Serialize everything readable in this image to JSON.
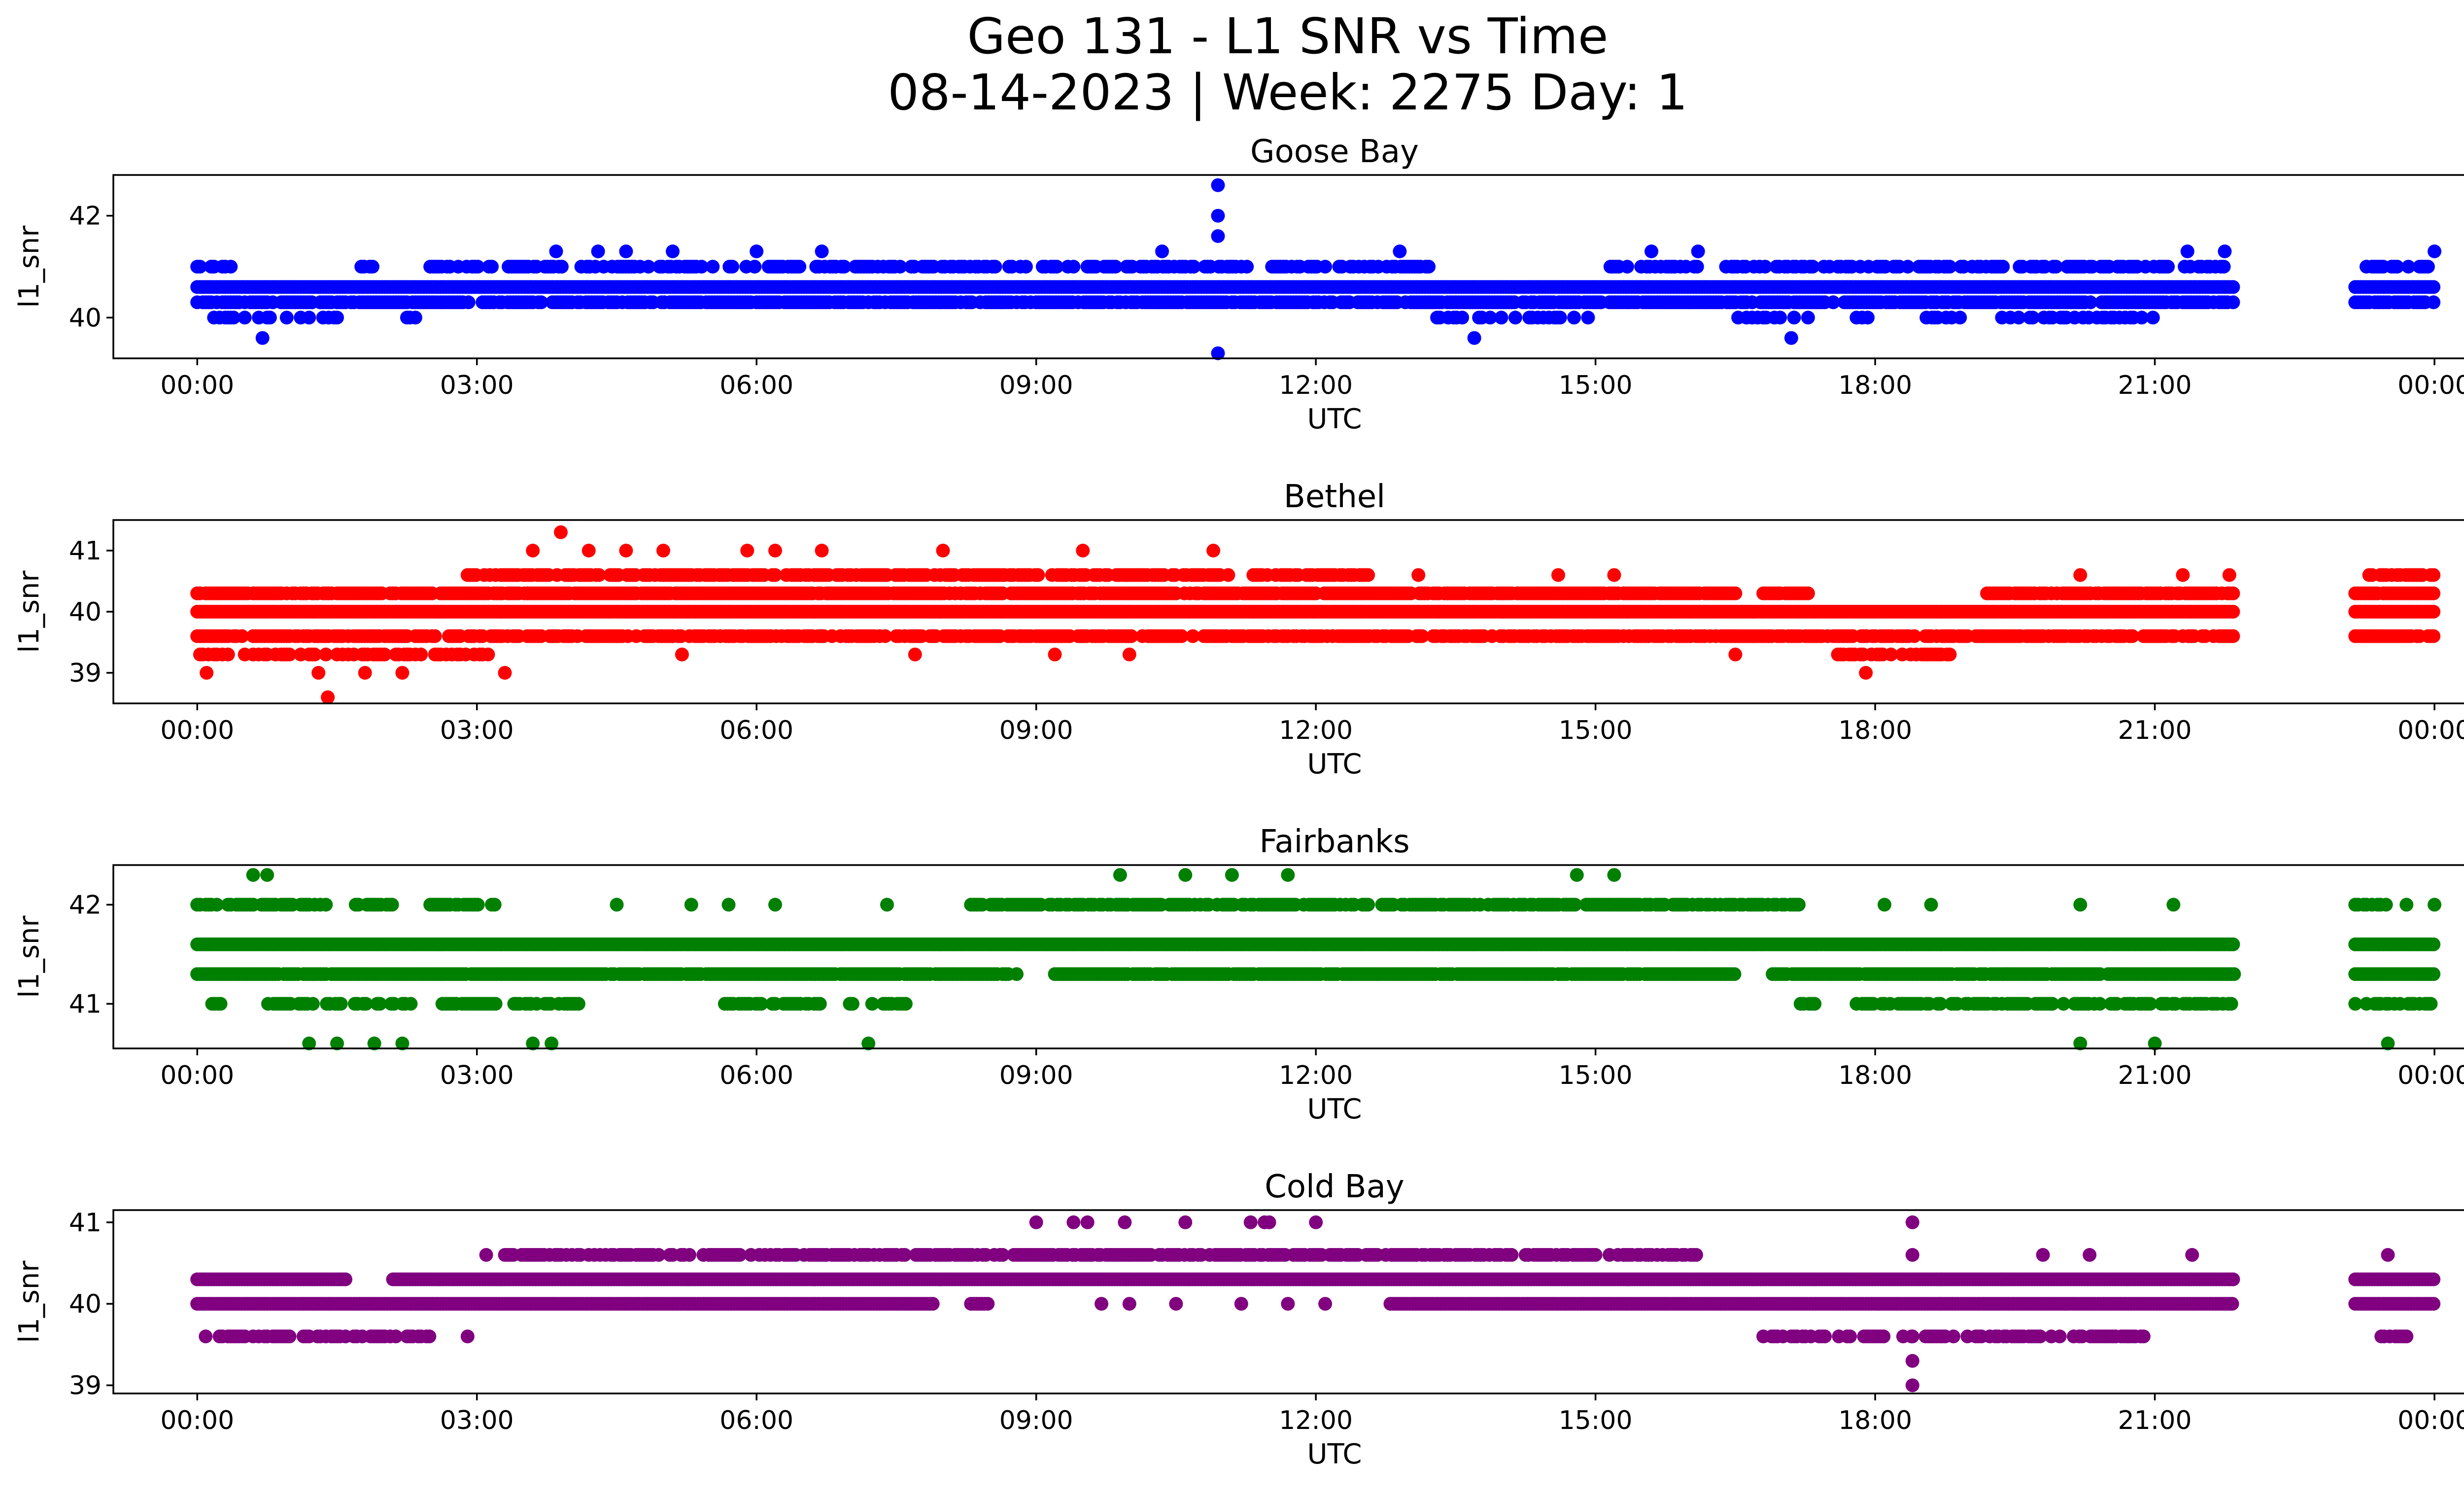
{
  "title_line1": "Geo 131 - L1 SNR vs Time",
  "title_line2": "08-14-2023 | Week: 2275 Day: 1",
  "chart_data": [
    {
      "type": "scatter",
      "title": "Goose Bay",
      "xlabel": "UTC",
      "ylabel": "l1_snr",
      "color": "#0000ff",
      "xlim": [
        -0.9,
        25.3
      ],
      "ylim": [
        39.2,
        42.8
      ],
      "yticks": [
        40,
        42
      ],
      "xticks": [
        0,
        3,
        6,
        9,
        12,
        15,
        18,
        21,
        24
      ],
      "xtick_labels": [
        "00:00",
        "03:00",
        "06:00",
        "09:00",
        "12:00",
        "15:00",
        "18:00",
        "21:00",
        "00:00"
      ],
      "data_window": [
        0,
        21.85
      ],
      "tail_window": [
        23.15,
        24
      ],
      "bands": [
        {
          "y": 40.0,
          "ranges": [
            [
              0.15,
              1.5
            ],
            [
              2.1,
              2.4
            ],
            [
              13.3,
              15.1
            ],
            [
              16.5,
              17.3
            ],
            [
              17.8,
              21.0
            ]
          ],
          "density": 0.35
        },
        {
          "y": 40.3,
          "ranges": [
            [
              0,
              21.85
            ],
            [
              23.15,
              24
            ]
          ],
          "density": 0.85
        },
        {
          "y": 40.6,
          "ranges": [
            [
              0,
              21.85
            ],
            [
              23.15,
              24
            ]
          ],
          "density": 1.0
        },
        {
          "y": 41.0,
          "ranges": [
            [
              0.0,
              0.4
            ],
            [
              1.7,
              1.9
            ],
            [
              2.5,
              13.3
            ],
            [
              15.1,
              16.1
            ],
            [
              16.4,
              21.85
            ],
            [
              23.15,
              24
            ]
          ],
          "density": 0.55
        }
      ],
      "outliers": [
        {
          "x": 0.7,
          "y": 39.6
        },
        {
          "x": 3.85,
          "y": 41.3
        },
        {
          "x": 4.3,
          "y": 41.3
        },
        {
          "x": 4.6,
          "y": 41.3
        },
        {
          "x": 5.1,
          "y": 41.3
        },
        {
          "x": 6.0,
          "y": 41.3
        },
        {
          "x": 6.7,
          "y": 41.3
        },
        {
          "x": 10.35,
          "y": 41.3
        },
        {
          "x": 10.95,
          "y": 42.6
        },
        {
          "x": 10.95,
          "y": 42.0
        },
        {
          "x": 10.95,
          "y": 41.6
        },
        {
          "x": 10.95,
          "y": 39.3
        },
        {
          "x": 12.9,
          "y": 41.3
        },
        {
          "x": 13.7,
          "y": 39.6
        },
        {
          "x": 15.6,
          "y": 41.3
        },
        {
          "x": 16.1,
          "y": 41.3
        },
        {
          "x": 17.1,
          "y": 39.6
        },
        {
          "x": 21.35,
          "y": 41.3
        },
        {
          "x": 21.75,
          "y": 41.3
        },
        {
          "x": 24.0,
          "y": 41.3
        }
      ]
    },
    {
      "type": "scatter",
      "title": "Bethel",
      "xlabel": "UTC",
      "ylabel": "l1_snr",
      "color": "#ff0000",
      "xlim": [
        -0.9,
        25.3
      ],
      "ylim": [
        38.5,
        41.5
      ],
      "yticks": [
        39,
        40,
        41
      ],
      "xticks": [
        0,
        3,
        6,
        9,
        12,
        15,
        18,
        21,
        24
      ],
      "xtick_labels": [
        "00:00",
        "03:00",
        "06:00",
        "09:00",
        "12:00",
        "15:00",
        "18:00",
        "21:00",
        "00:00"
      ],
      "data_window": [
        0,
        21.85
      ],
      "tail_window": [
        23.15,
        24
      ],
      "bands": [
        {
          "y": 39.3,
          "ranges": [
            [
              0,
              3.2
            ],
            [
              17.6,
              18.8
            ]
          ],
          "density": 0.55
        },
        {
          "y": 39.6,
          "ranges": [
            [
              0,
              21.85
            ],
            [
              23.15,
              24
            ]
          ],
          "density": 0.75
        },
        {
          "y": 40.0,
          "ranges": [
            [
              0,
              21.85
            ],
            [
              23.15,
              24
            ]
          ],
          "density": 1.0
        },
        {
          "y": 40.3,
          "ranges": [
            [
              0,
              16.5
            ],
            [
              16.8,
              17.3
            ],
            [
              19.2,
              21.85
            ],
            [
              23.15,
              24
            ]
          ],
          "density": 0.9
        },
        {
          "y": 40.6,
          "ranges": [
            [
              2.9,
              11.1
            ],
            [
              11.3,
              12.6
            ],
            [
              23.3,
              24
            ]
          ],
          "density": 0.7
        }
      ],
      "outliers": [
        {
          "x": 0.1,
          "y": 39.0
        },
        {
          "x": 1.3,
          "y": 39.0
        },
        {
          "x": 1.4,
          "y": 38.6
        },
        {
          "x": 1.8,
          "y": 39.0
        },
        {
          "x": 2.2,
          "y": 39.0
        },
        {
          "x": 3.3,
          "y": 39.0
        },
        {
          "x": 3.9,
          "y": 41.3
        },
        {
          "x": 3.6,
          "y": 41.0
        },
        {
          "x": 4.2,
          "y": 41.0
        },
        {
          "x": 4.6,
          "y": 41.0
        },
        {
          "x": 5.0,
          "y": 41.0
        },
        {
          "x": 5.9,
          "y": 41.0
        },
        {
          "x": 6.2,
          "y": 41.0
        },
        {
          "x": 6.7,
          "y": 41.0
        },
        {
          "x": 8.0,
          "y": 41.0
        },
        {
          "x": 9.5,
          "y": 41.0
        },
        {
          "x": 10.9,
          "y": 41.0
        },
        {
          "x": 5.2,
          "y": 39.3
        },
        {
          "x": 7.7,
          "y": 39.3
        },
        {
          "x": 9.2,
          "y": 39.3
        },
        {
          "x": 10.0,
          "y": 39.3
        },
        {
          "x": 16.5,
          "y": 39.3
        },
        {
          "x": 17.9,
          "y": 39.0
        },
        {
          "x": 20.2,
          "y": 40.6
        },
        {
          "x": 21.3,
          "y": 40.6
        },
        {
          "x": 21.8,
          "y": 40.6
        },
        {
          "x": 13.1,
          "y": 40.6
        },
        {
          "x": 14.6,
          "y": 40.6
        },
        {
          "x": 15.2,
          "y": 40.6
        }
      ]
    },
    {
      "type": "scatter",
      "title": "Fairbanks",
      "xlabel": "UTC",
      "ylabel": "l1_snr",
      "color": "#008000",
      "xlim": [
        -0.9,
        25.3
      ],
      "ylim": [
        40.55,
        42.4
      ],
      "yticks": [
        41,
        42
      ],
      "xticks": [
        0,
        3,
        6,
        9,
        12,
        15,
        18,
        21,
        24
      ],
      "xtick_labels": [
        "00:00",
        "03:00",
        "06:00",
        "09:00",
        "12:00",
        "15:00",
        "18:00",
        "21:00",
        "00:00"
      ],
      "data_window": [
        0,
        21.85
      ],
      "tail_window": [
        23.15,
        24
      ],
      "bands": [
        {
          "y": 41.0,
          "ranges": [
            [
              0.1,
              0.3
            ],
            [
              0.7,
              2.3
            ],
            [
              2.6,
              3.2
            ],
            [
              3.4,
              4.1
            ],
            [
              5.6,
              6.7
            ],
            [
              7.0,
              7.6
            ],
            [
              17.2,
              17.4
            ],
            [
              17.8,
              21.85
            ],
            [
              23.15,
              24
            ]
          ],
          "density": 0.65
        },
        {
          "y": 41.3,
          "ranges": [
            [
              0,
              8.8
            ],
            [
              9.2,
              16.5
            ],
            [
              16.9,
              21.85
            ],
            [
              23.15,
              24
            ]
          ],
          "density": 0.95
        },
        {
          "y": 41.6,
          "ranges": [
            [
              0,
              21.85
            ],
            [
              23.15,
              24
            ]
          ],
          "density": 1.0
        },
        {
          "y": 42.0,
          "ranges": [
            [
              0,
              1.4
            ],
            [
              1.7,
              2.1
            ],
            [
              2.5,
              3.2
            ],
            [
              8.3,
              17.2
            ],
            [
              23.15,
              23.5
            ]
          ],
          "density": 0.75
        }
      ],
      "outliers": [
        {
          "x": 0.6,
          "y": 42.3
        },
        {
          "x": 0.75,
          "y": 42.3
        },
        {
          "x": 1.2,
          "y": 40.6
        },
        {
          "x": 1.5,
          "y": 40.6
        },
        {
          "x": 1.9,
          "y": 40.6
        },
        {
          "x": 2.2,
          "y": 40.6
        },
        {
          "x": 3.6,
          "y": 40.6
        },
        {
          "x": 3.8,
          "y": 40.6
        },
        {
          "x": 7.2,
          "y": 40.6
        },
        {
          "x": 4.5,
          "y": 42.0
        },
        {
          "x": 5.3,
          "y": 42.0
        },
        {
          "x": 5.7,
          "y": 42.0
        },
        {
          "x": 6.2,
          "y": 42.0
        },
        {
          "x": 7.4,
          "y": 42.0
        },
        {
          "x": 9.9,
          "y": 42.3
        },
        {
          "x": 10.6,
          "y": 42.3
        },
        {
          "x": 11.1,
          "y": 42.3
        },
        {
          "x": 11.7,
          "y": 42.3
        },
        {
          "x": 14.8,
          "y": 42.3
        },
        {
          "x": 15.2,
          "y": 42.3
        },
        {
          "x": 18.1,
          "y": 42.0
        },
        {
          "x": 18.6,
          "y": 42.0
        },
        {
          "x": 20.2,
          "y": 42.0
        },
        {
          "x": 20.2,
          "y": 40.6
        },
        {
          "x": 21.0,
          "y": 40.6
        },
        {
          "x": 21.2,
          "y": 42.0
        },
        {
          "x": 23.7,
          "y": 42.0
        },
        {
          "x": 24.0,
          "y": 42.0
        },
        {
          "x": 23.5,
          "y": 40.6
        }
      ]
    },
    {
      "type": "scatter",
      "title": "Cold Bay",
      "xlabel": "UTC",
      "ylabel": "l1_snr",
      "color": "#800080",
      "xlim": [
        -0.9,
        25.3
      ],
      "ylim": [
        38.9,
        41.15
      ],
      "yticks": [
        39,
        40,
        41
      ],
      "xticks": [
        0,
        3,
        6,
        9,
        12,
        15,
        18,
        21,
        24
      ],
      "xtick_labels": [
        "00:00",
        "03:00",
        "06:00",
        "09:00",
        "12:00",
        "15:00",
        "18:00",
        "21:00",
        "00:00"
      ],
      "data_window": [
        0,
        21.85
      ],
      "tail_window": [
        23.15,
        24
      ],
      "bands": [
        {
          "y": 39.6,
          "ranges": [
            [
              0,
              2.5
            ],
            [
              16.8,
              20.9
            ],
            [
              23.4,
              23.7
            ]
          ],
          "density": 0.6
        },
        {
          "y": 40.0,
          "ranges": [
            [
              0,
              7.9
            ],
            [
              8.3,
              8.5
            ],
            [
              12.8,
              21.85
            ],
            [
              23.15,
              24
            ]
          ],
          "density": 1.0
        },
        {
          "y": 40.3,
          "ranges": [
            [
              0,
              1.6
            ],
            [
              2.1,
              21.85
            ],
            [
              23.15,
              24
            ]
          ],
          "density": 1.0
        },
        {
          "y": 40.6,
          "ranges": [
            [
              3.3,
              16.1
            ]
          ],
          "density": 0.75
        }
      ],
      "outliers": [
        {
          "x": 2.9,
          "y": 39.6
        },
        {
          "x": 3.1,
          "y": 40.6
        },
        {
          "x": 9.0,
          "y": 41.0
        },
        {
          "x": 9.4,
          "y": 41.0
        },
        {
          "x": 9.55,
          "y": 41.0
        },
        {
          "x": 9.95,
          "y": 41.0
        },
        {
          "x": 10.6,
          "y": 41.0
        },
        {
          "x": 11.3,
          "y": 41.0
        },
        {
          "x": 11.45,
          "y": 41.0
        },
        {
          "x": 11.5,
          "y": 41.0
        },
        {
          "x": 12.0,
          "y": 41.0
        },
        {
          "x": 9.7,
          "y": 40.0
        },
        {
          "x": 10.0,
          "y": 40.0
        },
        {
          "x": 10.5,
          "y": 40.0
        },
        {
          "x": 11.2,
          "y": 40.0
        },
        {
          "x": 11.7,
          "y": 40.0
        },
        {
          "x": 12.1,
          "y": 40.0
        },
        {
          "x": 18.4,
          "y": 41.0
        },
        {
          "x": 18.4,
          "y": 40.6
        },
        {
          "x": 18.4,
          "y": 39.6
        },
        {
          "x": 18.4,
          "y": 39.3
        },
        {
          "x": 18.4,
          "y": 39.0
        },
        {
          "x": 19.8,
          "y": 40.6
        },
        {
          "x": 20.3,
          "y": 40.6
        },
        {
          "x": 21.4,
          "y": 40.6
        },
        {
          "x": 23.5,
          "y": 40.6
        }
      ]
    }
  ]
}
